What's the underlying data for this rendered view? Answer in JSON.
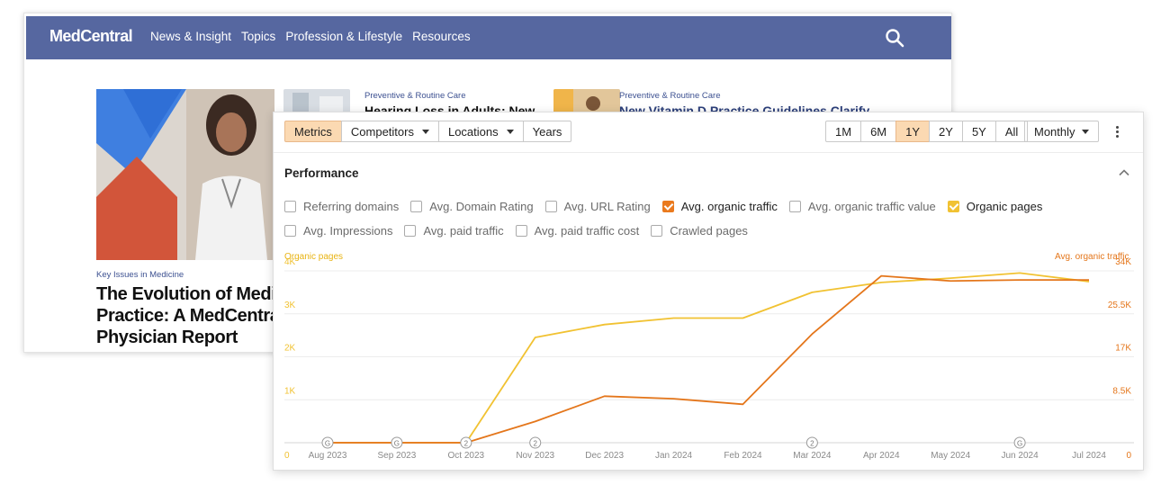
{
  "site": {
    "logo": "MedCentral",
    "nav": [
      "News & Insight",
      "Topics",
      "Profession & Lifestyle",
      "Resources"
    ],
    "hero": {
      "kicker": "Key Issues in Medicine",
      "title_lines": [
        "The Evolution of Medic",
        "Practice: A MedCentral",
        "Physician Report"
      ]
    },
    "card1": {
      "kicker": "Preventive & Routine Care",
      "title": "Hearing Loss in Adults: New"
    },
    "card2": {
      "kicker": "Preventive & Routine Care",
      "title": "New Vitamin D Practice Guidelines Clarify"
    }
  },
  "panel": {
    "tabs": [
      {
        "label": "Metrics",
        "active": true,
        "dropdown": false
      },
      {
        "label": "Competitors",
        "active": false,
        "dropdown": true
      },
      {
        "label": "Locations",
        "active": false,
        "dropdown": true
      },
      {
        "label": "Years",
        "active": false,
        "dropdown": false
      }
    ],
    "ranges": [
      {
        "label": "1M",
        "active": false
      },
      {
        "label": "6M",
        "active": false
      },
      {
        "label": "1Y",
        "active": true
      },
      {
        "label": "2Y",
        "active": false
      },
      {
        "label": "5Y",
        "active": false
      },
      {
        "label": "All",
        "active": false
      }
    ],
    "interval": "Monthly",
    "section_title": "Performance",
    "metrics_row1": [
      {
        "label": "Referring domains",
        "checked": false
      },
      {
        "label": "Avg. Domain Rating",
        "checked": false
      },
      {
        "label": "Avg. URL Rating",
        "checked": false
      },
      {
        "label": "Avg. organic traffic",
        "checked": true,
        "color": "#ea7a1e"
      },
      {
        "label": "Avg. organic traffic value",
        "checked": false
      },
      {
        "label": "Organic pages",
        "checked": true,
        "color": "#f1c232"
      }
    ],
    "metrics_row2": [
      {
        "label": "Avg. Impressions",
        "checked": false
      },
      {
        "label": "Avg. paid traffic",
        "checked": false
      },
      {
        "label": "Avg. paid traffic cost",
        "checked": false
      },
      {
        "label": "Crawled pages",
        "checked": false
      }
    ]
  },
  "chart_data": {
    "type": "line",
    "x": [
      "Aug 2023",
      "Sep 2023",
      "Oct 2023",
      "Nov 2023",
      "Dec 2023",
      "Jan 2024",
      "Feb 2024",
      "Mar 2024",
      "Apr 2024",
      "May 2024",
      "Jun 2024",
      "Jul 2024"
    ],
    "y_left": {
      "label": "Organic pages",
      "ticks": [
        "0",
        "1K",
        "2K",
        "3K",
        "4K"
      ],
      "range": [
        0,
        4000
      ],
      "color": "#f1c232"
    },
    "y_right": {
      "label": "Avg. organic traffic",
      "ticks": [
        "0",
        "8.5K",
        "17K",
        "25.5K",
        "34K"
      ],
      "range": [
        0,
        34000
      ],
      "color": "#e4761b"
    },
    "series": [
      {
        "name": "Organic pages",
        "axis": "left",
        "color": "#f1c232",
        "values": [
          0,
          0,
          0,
          2450,
          2750,
          2900,
          2900,
          3500,
          3730,
          3830,
          3950,
          3750
        ]
      },
      {
        "name": "Avg. organic traffic",
        "axis": "right",
        "color": "#e4761b",
        "values": [
          0,
          0,
          0,
          4200,
          9200,
          8700,
          7600,
          21500,
          33000,
          32000,
          32200,
          32200
        ]
      }
    ],
    "annotations": [
      {
        "x": "Aug 2023",
        "label": "G"
      },
      {
        "x": "Sep 2023",
        "label": "G"
      },
      {
        "x": "Oct 2023",
        "label": "2"
      },
      {
        "x": "Nov 2023",
        "label": "2"
      },
      {
        "x": "Mar 2024",
        "label": "2"
      },
      {
        "x": "Jun 2024",
        "label": "G"
      }
    ],
    "grid": true
  }
}
